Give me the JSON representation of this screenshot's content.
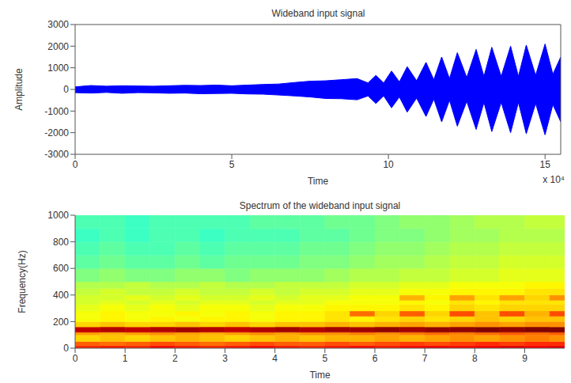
{
  "chart_data": [
    {
      "type": "area",
      "title": "Wideband input signal",
      "xlabel": "Time",
      "ylabel": "Amplitude",
      "annotations": [
        "x 10⁴"
      ],
      "x": [
        0,
        0.5,
        1,
        1.5,
        2,
        2.5,
        3,
        3.5,
        4,
        4.5,
        5,
        5.5,
        6,
        6.5,
        7,
        7.5,
        8,
        8.5,
        9,
        9.35,
        9.6,
        9.85,
        10.1,
        10.35,
        10.6,
        10.9,
        11.2,
        11.45,
        11.7,
        11.95,
        12.2,
        12.5,
        12.8,
        13.05,
        13.3,
        13.6,
        13.9,
        14.15,
        14.4,
        14.7,
        15.0,
        15.25,
        15.5
      ],
      "y_max": [
        120,
        180,
        150,
        170,
        160,
        150,
        170,
        190,
        180,
        200,
        170,
        200,
        230,
        250,
        320,
        380,
        400,
        450,
        500,
        300,
        650,
        300,
        850,
        350,
        1050,
        400,
        1250,
        450,
        1500,
        500,
        1700,
        550,
        1850,
        600,
        1950,
        600,
        2000,
        600,
        2050,
        650,
        2100,
        700,
        1500
      ],
      "y_min": [
        -150,
        -170,
        -140,
        -180,
        -150,
        -160,
        -180,
        -170,
        -200,
        -190,
        -180,
        -210,
        -220,
        -260,
        -300,
        -350,
        -420,
        -430,
        -480,
        -300,
        -650,
        -300,
        -850,
        -350,
        -1050,
        -400,
        -1250,
        -450,
        -1500,
        -500,
        -1700,
        -550,
        -1850,
        -600,
        -1950,
        -600,
        -2000,
        -600,
        -2050,
        -650,
        -2100,
        -700,
        -1500
      ],
      "color": "#0000ff",
      "xlim": [
        0,
        15.5
      ],
      "xticks": [
        0,
        5,
        10,
        15
      ],
      "ylim": [
        -3000,
        3000
      ],
      "yticks": [
        -3000,
        -2000,
        -1000,
        0,
        1000,
        2000,
        3000
      ],
      "grid": false
    },
    {
      "type": "heatmap",
      "title": "Spectrum of the wideband input signal",
      "xlabel": "Time",
      "ylabel": "Frequency(Hz)",
      "time_edges": [
        0,
        0.5,
        1,
        1.5,
        2,
        2.5,
        3,
        3.5,
        4,
        4.5,
        5,
        5.5,
        6,
        6.5,
        7,
        7.5,
        8,
        8.5,
        9,
        9.5,
        9.8
      ],
      "frequency_edges": [
        0,
        20,
        50,
        100,
        120,
        160,
        200,
        240,
        280,
        330,
        360,
        400,
        450,
        500,
        600,
        700,
        800,
        900,
        1000
      ],
      "cells": [
        [
          70,
          71,
          70,
          72,
          71,
          70,
          71,
          72,
          71,
          70,
          71,
          72,
          71,
          72,
          73,
          72,
          73,
          74,
          73,
          74
        ],
        [
          67,
          66,
          67,
          68,
          67,
          66,
          67,
          68,
          67,
          67,
          68,
          67,
          68,
          69,
          68,
          69,
          70,
          69,
          70,
          70
        ],
        [
          60,
          61,
          60,
          61,
          62,
          61,
          60,
          61,
          62,
          61,
          62,
          62,
          63,
          62,
          63,
          64,
          63,
          64,
          65,
          64
        ],
        [
          63,
          62,
          63,
          64,
          63,
          62,
          63,
          64,
          63,
          64,
          64,
          65,
          64,
          65,
          66,
          65,
          66,
          67,
          66,
          67
        ],
        [
          76,
          77,
          76,
          77,
          78,
          77,
          76,
          77,
          78,
          77,
          78,
          78,
          79,
          78,
          79,
          79,
          80,
          79,
          80,
          80
        ],
        [
          60,
          61,
          60,
          60,
          61,
          60,
          61,
          60,
          61,
          61,
          62,
          61,
          62,
          63,
          62,
          63,
          64,
          63,
          64,
          64
        ],
        [
          57,
          58,
          57,
          58,
          57,
          58,
          58,
          57,
          58,
          58,
          59,
          58,
          59,
          60,
          59,
          60,
          61,
          60,
          61,
          61
        ],
        [
          57,
          58,
          57,
          57,
          58,
          57,
          58,
          57,
          58,
          58,
          59,
          66,
          60,
          67,
          60,
          68,
          61,
          68,
          62,
          68
        ],
        [
          56,
          57,
          56,
          57,
          56,
          57,
          57,
          56,
          57,
          57,
          58,
          58,
          58,
          59,
          58,
          60,
          59,
          60,
          60,
          60
        ],
        [
          55,
          56,
          55,
          56,
          55,
          56,
          56,
          55,
          56,
          56,
          57,
          57,
          57,
          58,
          57,
          59,
          58,
          59,
          59,
          59
        ],
        [
          55,
          55,
          56,
          55,
          56,
          55,
          55,
          56,
          55,
          56,
          56,
          57,
          57,
          62,
          58,
          63,
          59,
          63,
          60,
          64
        ],
        [
          54,
          55,
          54,
          54,
          55,
          54,
          54,
          55,
          54,
          55,
          55,
          56,
          56,
          57,
          57,
          58,
          58,
          58,
          59,
          59
        ],
        [
          53,
          53,
          54,
          53,
          53,
          54,
          53,
          53,
          54,
          54,
          54,
          55,
          55,
          56,
          56,
          57,
          57,
          57,
          58,
          58
        ],
        [
          50,
          51,
          50,
          50,
          51,
          51,
          50,
          51,
          51,
          51,
          52,
          53,
          53,
          54,
          54,
          55,
          55,
          56,
          56,
          56
        ],
        [
          48,
          49,
          48,
          48,
          49,
          48,
          49,
          49,
          49,
          50,
          50,
          51,
          52,
          52,
          53,
          54,
          54,
          55,
          55,
          55
        ],
        [
          47,
          48,
          47,
          47,
          48,
          47,
          48,
          48,
          48,
          49,
          49,
          50,
          51,
          51,
          52,
          53,
          53,
          54,
          54,
          54
        ],
        [
          46,
          47,
          46,
          47,
          47,
          46,
          47,
          47,
          47,
          48,
          48,
          49,
          50,
          50,
          51,
          52,
          52,
          53,
          53,
          53
        ],
        [
          47,
          47,
          46,
          47,
          47,
          47,
          47,
          48,
          48,
          48,
          49,
          49,
          50,
          51,
          51,
          52,
          53,
          53,
          54,
          54
        ]
      ],
      "clim": [
        20,
        80
      ],
      "xlim": [
        0,
        9.8
      ],
      "xticks": [
        0,
        1,
        2,
        3,
        4,
        5,
        6,
        7,
        8,
        9
      ],
      "ylim": [
        0,
        1000
      ],
      "yticks": [
        0,
        200,
        400,
        600,
        800,
        1000
      ],
      "grid": false
    }
  ]
}
